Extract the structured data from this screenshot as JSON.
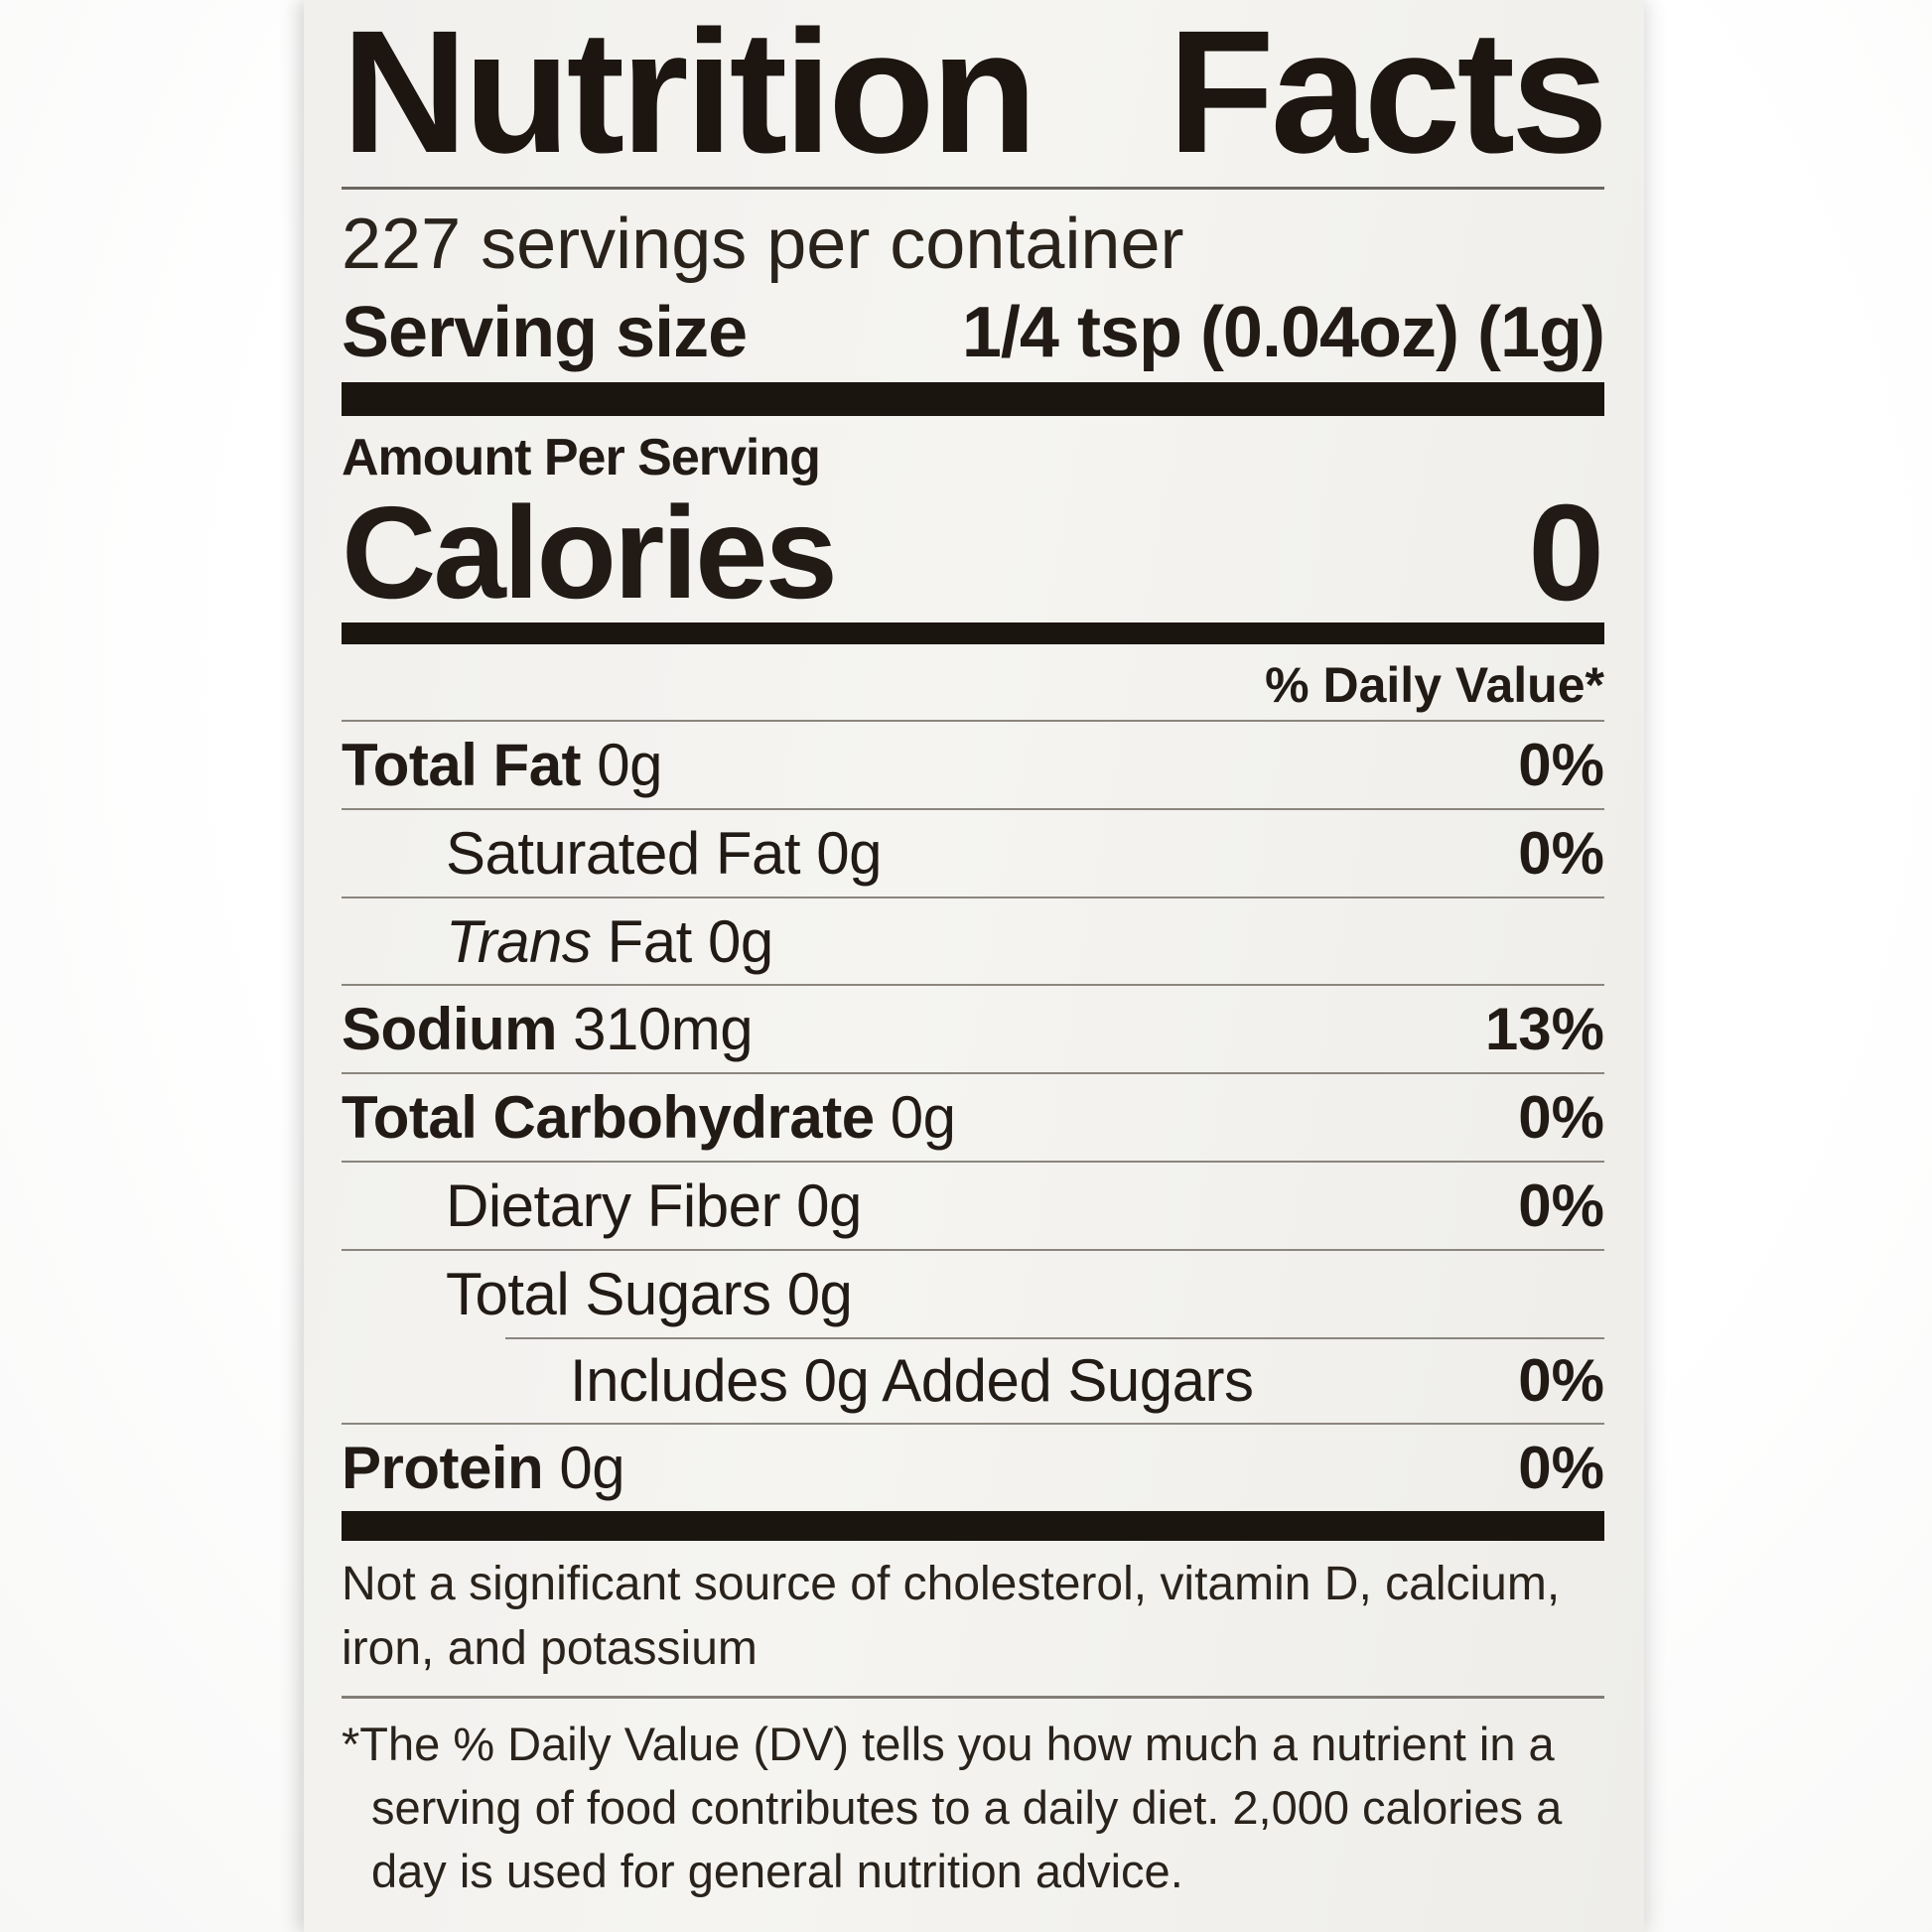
{
  "label": {
    "title": "Nutrition Facts",
    "servings_per_container": "227 servings per container",
    "serving_size": {
      "label": "Serving size",
      "value": "1/4 tsp (0.04oz) (1g)"
    },
    "amount_per_serving": "Amount Per Serving",
    "calories": {
      "label": "Calories",
      "value": "0"
    },
    "daily_value_header": "% Daily Value*",
    "nutrients": [
      {
        "name": "Total Fat",
        "amount": "0g",
        "dv": "0%"
      },
      {
        "name": "Saturated Fat",
        "amount": "0g",
        "dv": "0%"
      },
      {
        "name_italic": "Trans",
        "name": "Fat",
        "amount": "0g",
        "dv": ""
      },
      {
        "name": "Sodium",
        "amount": "310mg",
        "dv": "13%"
      },
      {
        "name": "Total Carbohydrate",
        "amount": "0g",
        "dv": "0%"
      },
      {
        "name": "Dietary Fiber",
        "amount": "0g",
        "dv": "0%"
      },
      {
        "name": "Total Sugars",
        "amount": "0g",
        "dv": ""
      },
      {
        "name": "Includes 0g Added Sugars",
        "amount": "",
        "dv": "0%"
      },
      {
        "name": "Protein",
        "amount": "0g",
        "dv": "0%"
      }
    ],
    "not_significant_lines": [
      "Not a significant source of cholesterol, vitamin D, calcium,",
      "iron, and potassium"
    ],
    "footnote_lines": [
      "*The % Daily Value (DV) tells you how much a nutrient in a",
      "serving of food contributes to a daily diet. 2,000 calories a",
      "day is used for general nutrition advice."
    ],
    "colors": {
      "paper": "#f2f1ee",
      "ink": "#1d1610",
      "thick_bar": "#1b150f",
      "thin_rule": "#8b867e",
      "background": "#ffffff"
    }
  }
}
